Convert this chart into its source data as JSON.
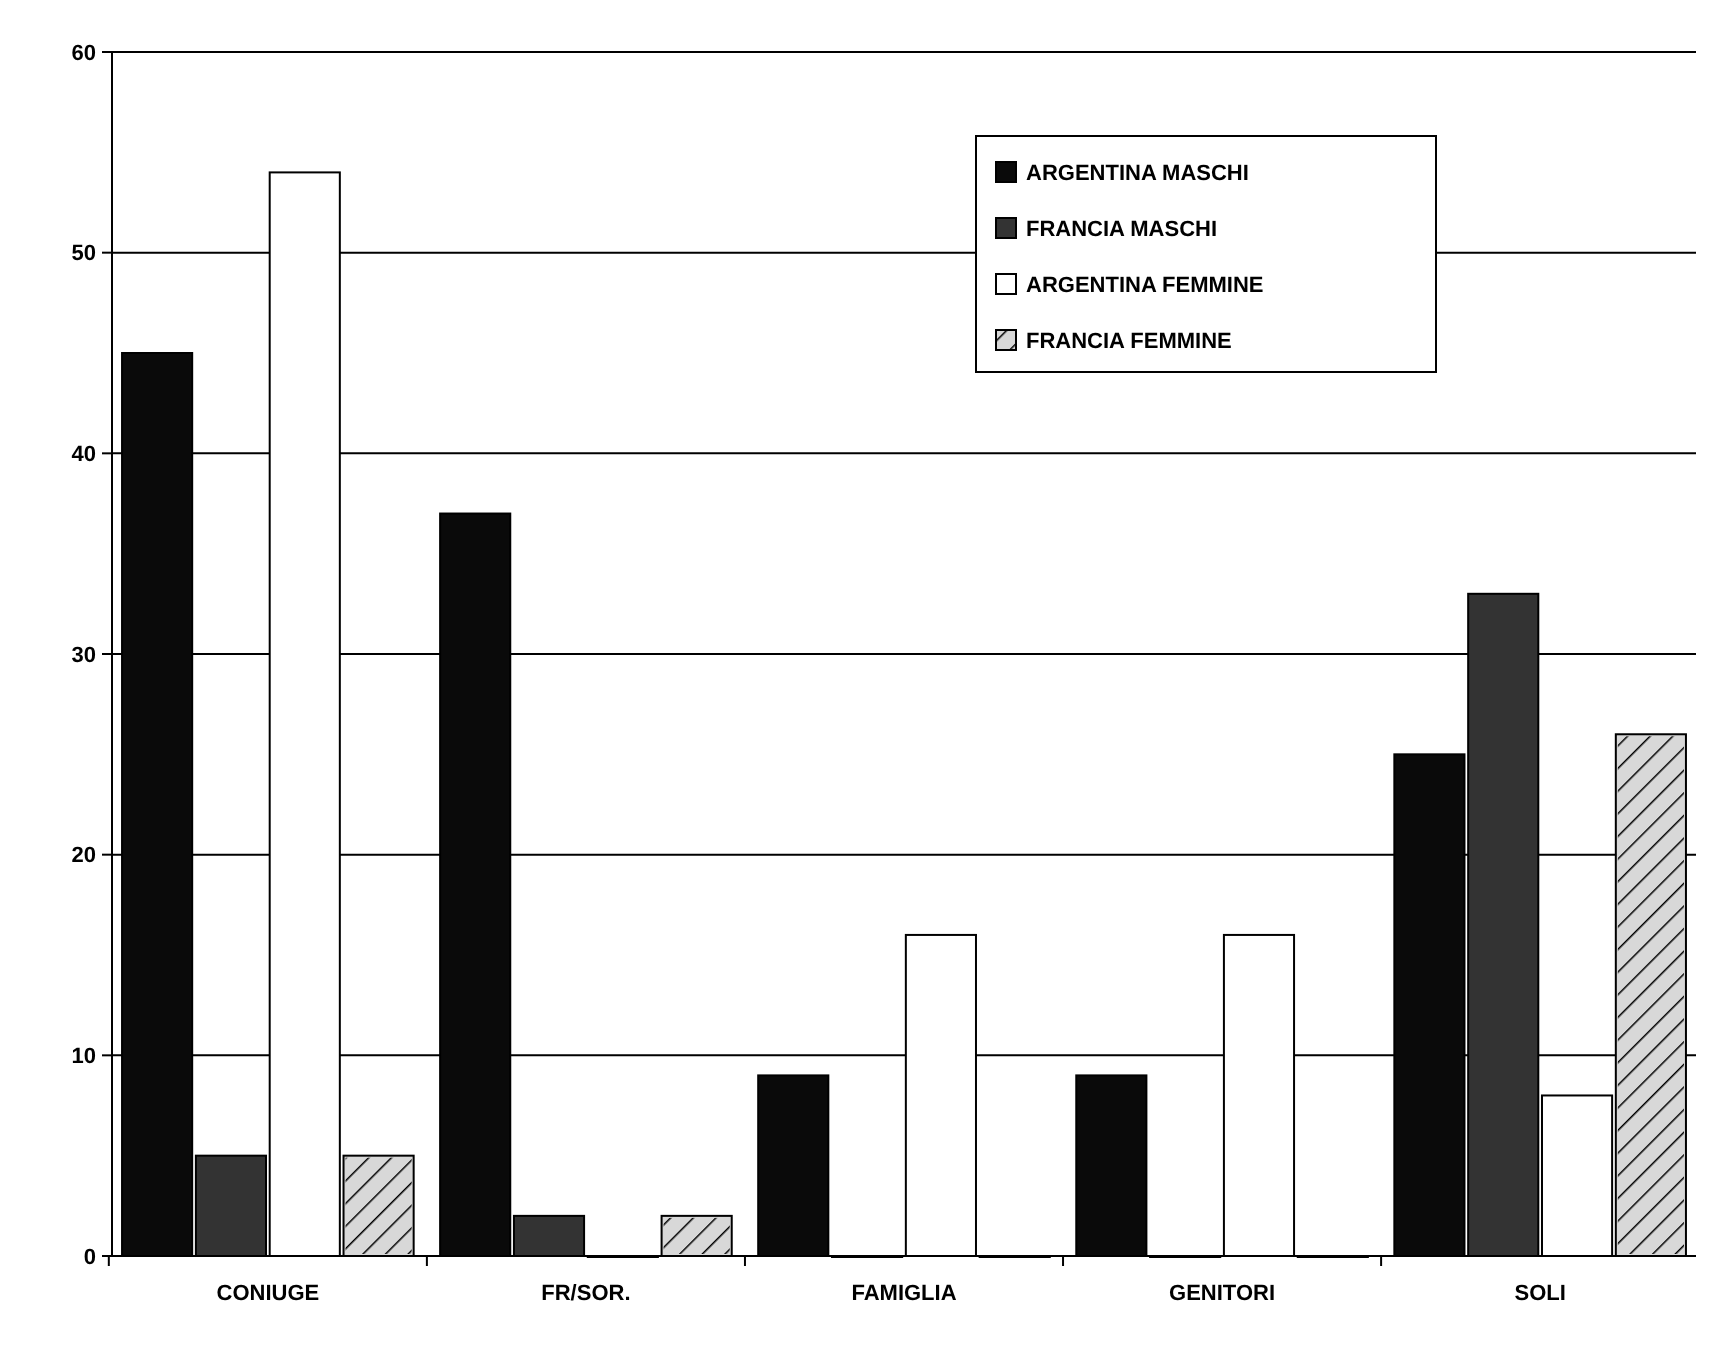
{
  "chart_data": {
    "type": "bar",
    "categories": [
      "CONIUGE",
      "FR/SOR.",
      "FAMIGLIA",
      "GENITORI",
      "SOLI"
    ],
    "series": [
      {
        "name": "ARGENTINA MASCHI",
        "color": "#0a0a0a",
        "values": [
          45,
          37,
          9,
          9,
          25
        ]
      },
      {
        "name": "FRANCIA MASCHI",
        "color": "#333333",
        "values": [
          5,
          2,
          0,
          0,
          33
        ]
      },
      {
        "name": "ARGENTINA FEMMINE",
        "color": "#ffffff",
        "values": [
          54,
          0,
          16,
          16,
          8
        ]
      },
      {
        "name": "FRANCIA FEMMINE",
        "color": "#d8d8d8",
        "values": [
          5,
          2,
          0,
          0,
          26
        ]
      }
    ],
    "ylim": [
      0,
      60
    ],
    "yticks": [
      0,
      10,
      20,
      30,
      40,
      50,
      60
    ],
    "grid": "y",
    "legend": "top right"
  }
}
